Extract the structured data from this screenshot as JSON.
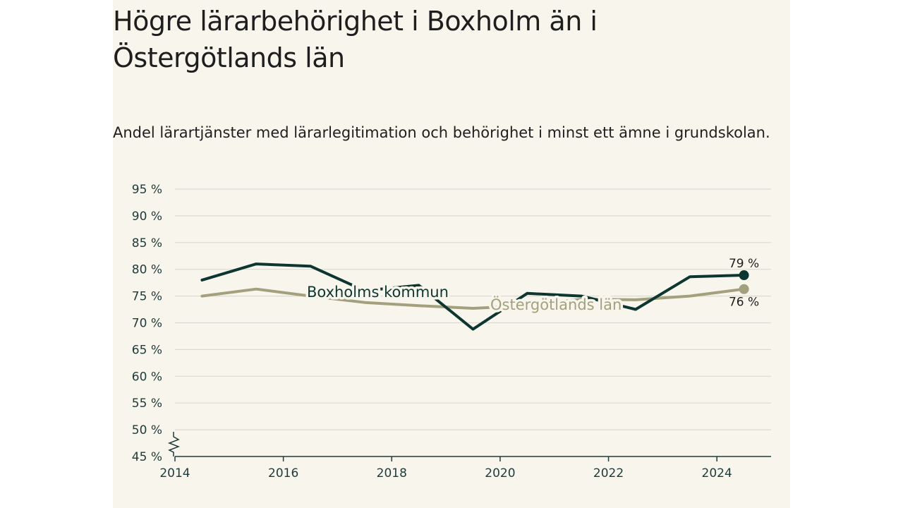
{
  "title": "Högre lärarbehörighet i Boxholm än i Östergötlands län",
  "subtitle": "Andel lärartjänster med lärarlegitimation och behörighet i minst ett ämne i grundskolan.",
  "colors": {
    "background": "#f8f6ec",
    "boxholm": "#0d3630",
    "ostergotland": "#a3a07e",
    "grid": "#d9d9d6",
    "axis": "#1f3a3a"
  },
  "chart_data": {
    "type": "line",
    "title": "Högre lärarbehörighet i Boxholm än i Östergötlands län",
    "subtitle": "Andel lärartjänster med lärarlegitimation och behörighet i minst ett ämne i grundskolan.",
    "xlim": [
      2014,
      2025
    ],
    "ylim": [
      45,
      95
    ],
    "xticks": [
      2014,
      2016,
      2018,
      2020,
      2022,
      2024
    ],
    "xtick_labels": [
      "2014",
      "2016",
      "2018",
      "2020",
      "2022",
      "2024"
    ],
    "yticks": [
      45,
      50,
      55,
      60,
      65,
      70,
      75,
      80,
      85,
      90,
      95
    ],
    "ytick_labels": [
      "45 %",
      "50 %",
      "55 %",
      "60 %",
      "65 %",
      "70 %",
      "75 %",
      "80 %",
      "85 %",
      "90 %",
      "95 %"
    ],
    "grid": true,
    "axis_break": true,
    "series": [
      {
        "name": "Boxholms kommun",
        "color": "#0d3630",
        "x": [
          2014.5,
          2015.5,
          2016.5,
          2017.5,
          2018.5,
          2019.5,
          2020.5,
          2021.5,
          2022.5,
          2023.5,
          2024.5
        ],
        "y": [
          78,
          81,
          80.6,
          76,
          77,
          68.8,
          75.5,
          75,
          72.5,
          78.6,
          78.9
        ],
        "end_label": "79 %"
      },
      {
        "name": "Östergötlands län",
        "color": "#a3a07e",
        "x": [
          2014.5,
          2015.5,
          2016.5,
          2017.5,
          2018.5,
          2019.5,
          2020.5,
          2021.5,
          2022.5,
          2023.5,
          2024.5
        ],
        "y": [
          75,
          76.3,
          75,
          73.8,
          73.2,
          72.7,
          73.2,
          74.4,
          74.3,
          75,
          76.3
        ],
        "end_label": "76 %"
      }
    ]
  }
}
